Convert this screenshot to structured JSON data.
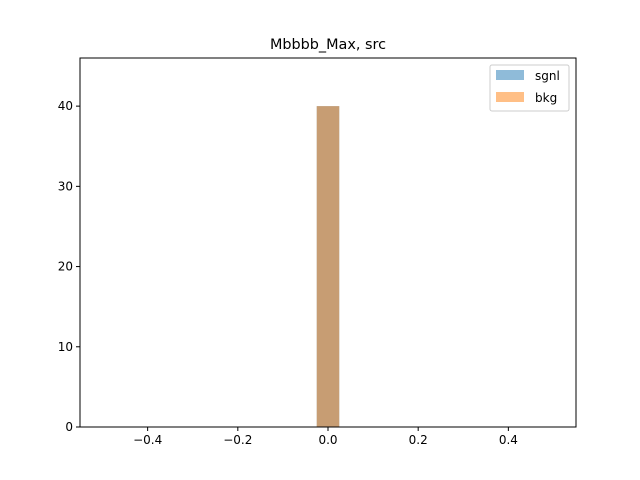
{
  "chart_data": {
    "type": "bar",
    "title": "Mbbbb_Max, src",
    "xlabel": "",
    "ylabel": "",
    "xlim": [
      -0.55,
      0.55
    ],
    "ylim": [
      0,
      46
    ],
    "x_ticks": [
      -0.4,
      -0.2,
      0.0,
      0.2,
      0.4
    ],
    "x_tick_labels": [
      "−0.4",
      "−0.2",
      "0.0",
      "0.2",
      "0.4"
    ],
    "y_ticks": [
      0,
      10,
      20,
      30,
      40
    ],
    "y_tick_labels": [
      "0",
      "10",
      "20",
      "30",
      "40"
    ],
    "bin_edges": [
      -0.025,
      0.025
    ],
    "series": [
      {
        "name": "sgnl",
        "color": "#1f77b4",
        "alpha": 0.5,
        "values": [
          40
        ]
      },
      {
        "name": "bkg",
        "color": "#ff7f0e",
        "alpha": 0.5,
        "values": [
          40
        ]
      }
    ],
    "legend_position": "top-right",
    "grid": false
  }
}
